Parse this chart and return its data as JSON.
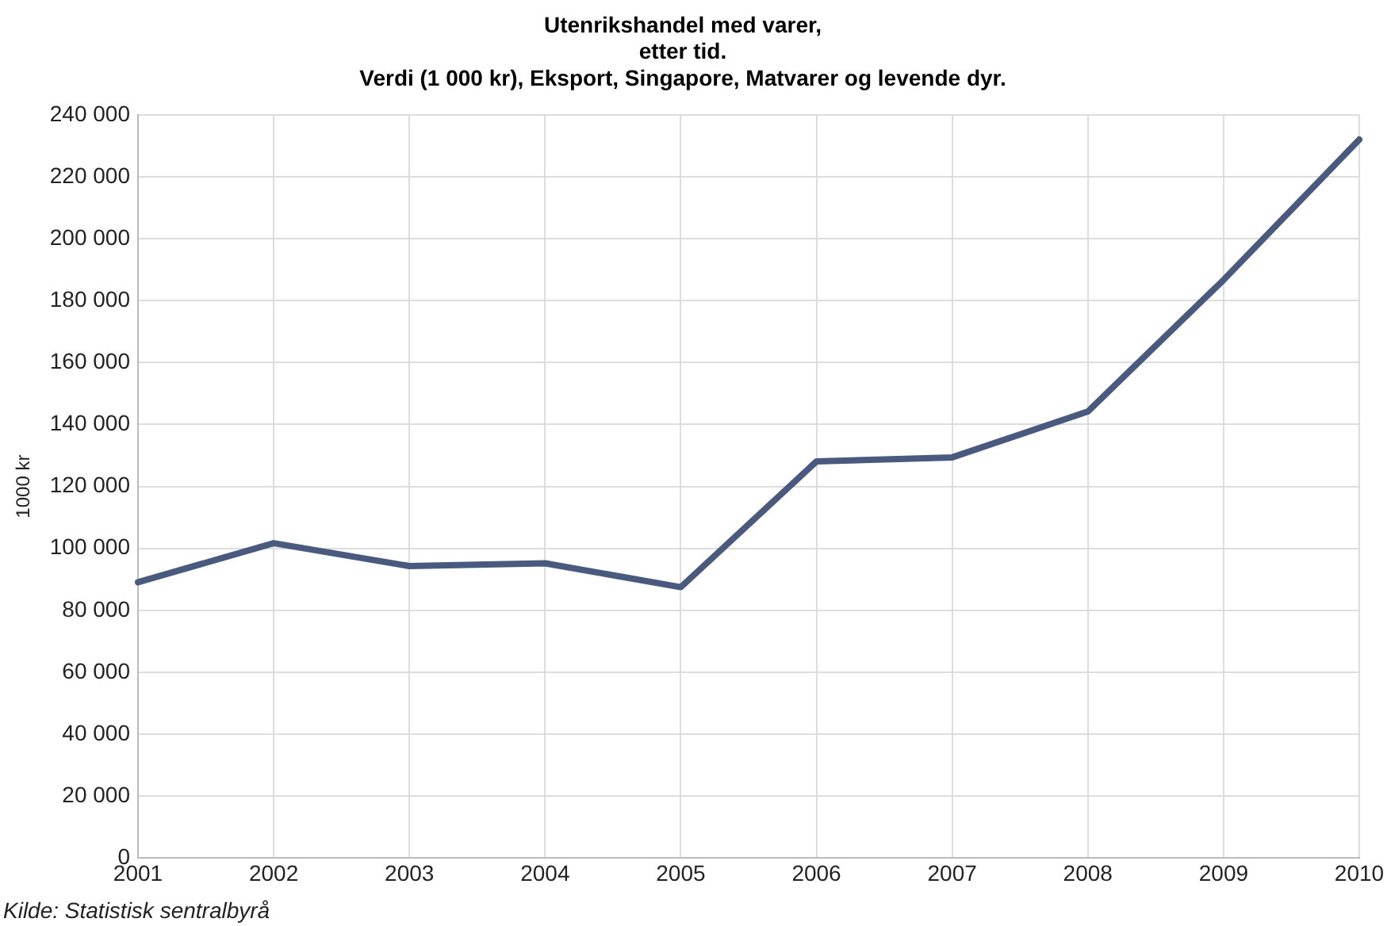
{
  "chart_data": {
    "type": "line",
    "title": "Utenrikshandel med varer,\netter tid.\nVerdi (1 000 kr), Eksport, Singapore, Matvarer og levende dyr.",
    "ylabel": "1000 kr",
    "categories": [
      "2001",
      "2002",
      "2003",
      "2004",
      "2005",
      "2006",
      "2007",
      "2008",
      "2009",
      "2010"
    ],
    "series": [
      {
        "color": "#4a5a7e",
        "values": [
          89100,
          101700,
          94300,
          95200,
          87500,
          128100,
          129400,
          144200,
          186700,
          232000
        ]
      }
    ],
    "ylim": [
      0,
      240000
    ],
    "yticks": [
      {
        "value": 0,
        "label": "0"
      },
      {
        "value": 20000,
        "label": "20 000"
      },
      {
        "value": 40000,
        "label": "40 000"
      },
      {
        "value": 60000,
        "label": "60 000"
      },
      {
        "value": 80000,
        "label": "80 000"
      },
      {
        "value": 100000,
        "label": "100 000"
      },
      {
        "value": 120000,
        "label": "120 000"
      },
      {
        "value": 140000,
        "label": "140 000"
      },
      {
        "value": 160000,
        "label": "160 000"
      },
      {
        "value": 180000,
        "label": "180 000"
      },
      {
        "value": 200000,
        "label": "200 000"
      },
      {
        "value": 220000,
        "label": "220 000"
      },
      {
        "value": 240000,
        "label": "240 000"
      }
    ],
    "grid": true,
    "legend": false,
    "marker": "none",
    "line_style": "solid",
    "annotations": [
      "Kilde: Statistisk sentralbyrå"
    ]
  }
}
